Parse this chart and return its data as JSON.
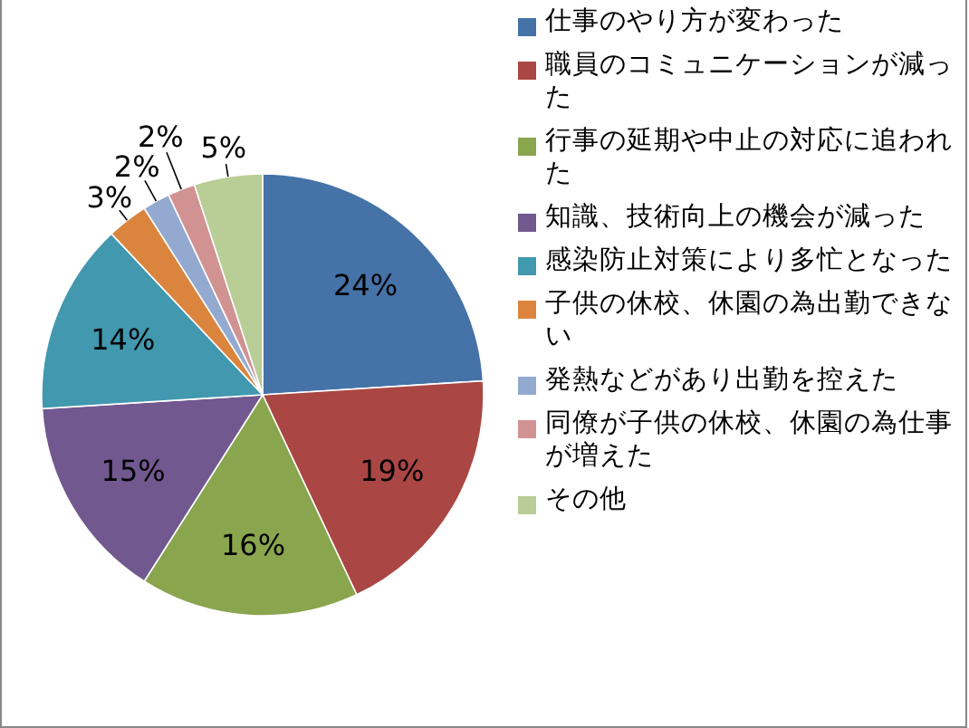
{
  "chart_data": {
    "type": "pie",
    "categories": [
      "仕事のやり方が変わった",
      "職員のコミュニケーションが減った",
      "行事の延期や中止の対応に追われた",
      "知識、技術向上の機会が減った",
      "感染防止対策により多忙となった",
      "子供の休校、休園の為出勤できない",
      "発熱などがあり出勤を控えた",
      "同僚が子供の休校、休園の為仕事が増えた",
      "その他"
    ],
    "values": [
      24,
      19,
      16,
      15,
      14,
      3,
      2,
      2,
      5
    ],
    "value_labels": [
      "24%",
      "19%",
      "16%",
      "15%",
      "14%",
      "3%",
      "2%",
      "2%",
      "5%"
    ],
    "colors": [
      "#4572a7",
      "#aa4643",
      "#89a54e",
      "#71588f",
      "#4198af",
      "#db843d",
      "#93a9cf",
      "#d19392",
      "#b9cd96"
    ],
    "legend": "right"
  }
}
